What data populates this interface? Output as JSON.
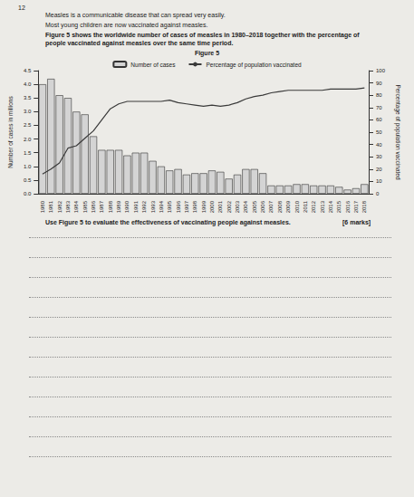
{
  "question_number": "12",
  "intro": [
    "Measles is a communicable disease that can spread very easily.",
    "Most young children are now vaccinated against measles."
  ],
  "figure_text": "Figure 5 shows the worldwide number of cases of measles in 1980–2018 together with the percentage of people vaccinated against measles over the same time period.",
  "figure_title": "Figure 5",
  "prompt": "Use Figure 5 to evaluate the effectiveness of vaccinating people against measles.",
  "marks": "[6 marks]",
  "chart_data": {
    "type": "bar",
    "categories": [
      "1980",
      "1981",
      "1982",
      "1983",
      "1984",
      "1985",
      "1986",
      "1987",
      "1988",
      "1989",
      "1990",
      "1991",
      "1992",
      "1993",
      "1994",
      "1995",
      "1996",
      "1997",
      "1998",
      "1999",
      "2000",
      "2001",
      "2002",
      "2003",
      "2004",
      "2005",
      "2006",
      "2007",
      "2008",
      "2009",
      "2010",
      "2011",
      "2012",
      "2013",
      "2014",
      "2015",
      "2016",
      "2017",
      "2018"
    ],
    "series": [
      {
        "name": "Number of cases",
        "type": "bar",
        "color": "#d4d4d4",
        "values": [
          4.0,
          4.2,
          3.6,
          3.5,
          3.0,
          2.9,
          2.1,
          1.6,
          1.6,
          1.6,
          1.4,
          1.5,
          1.5,
          1.2,
          1.0,
          0.85,
          0.9,
          0.7,
          0.75,
          0.75,
          0.85,
          0.8,
          0.55,
          0.7,
          0.9,
          0.9,
          0.75,
          0.3,
          0.3,
          0.3,
          0.35,
          0.35,
          0.3,
          0.3,
          0.3,
          0.25,
          0.15,
          0.2,
          0.35
        ]
      },
      {
        "name": "Percentage of population vaccinated",
        "type": "line",
        "color": "#3a3a3a",
        "axis": "y2",
        "marker": "none",
        "values": [
          16,
          20,
          25,
          37,
          39,
          45,
          51,
          60,
          69,
          73,
          75,
          75,
          75,
          75,
          75,
          76,
          74,
          73,
          72,
          71,
          72,
          71,
          72,
          74,
          77,
          79,
          80,
          82,
          83,
          84,
          84,
          84,
          84,
          84,
          85,
          85,
          85,
          85,
          86
        ]
      }
    ],
    "ylabel": "Number of cases in millions",
    "y2label": "Percentage of population vaccinated",
    "ylim": [
      0,
      4.5
    ],
    "yticks": [
      {
        "value": 0,
        "label": "0.0"
      },
      0.5,
      {
        "value": 1,
        "label": "1.0"
      },
      1.5,
      {
        "value": 2,
        "label": "2.0"
      },
      2.5,
      {
        "value": 3,
        "label": "3.0"
      },
      3.5,
      {
        "value": 4,
        "label": "4.0"
      },
      4.5
    ],
    "y2lim": [
      0,
      100
    ],
    "y2ticks": [
      0,
      10,
      20,
      30,
      40,
      50,
      60,
      70,
      80,
      90,
      100
    ],
    "legend": "top",
    "grid": false
  }
}
